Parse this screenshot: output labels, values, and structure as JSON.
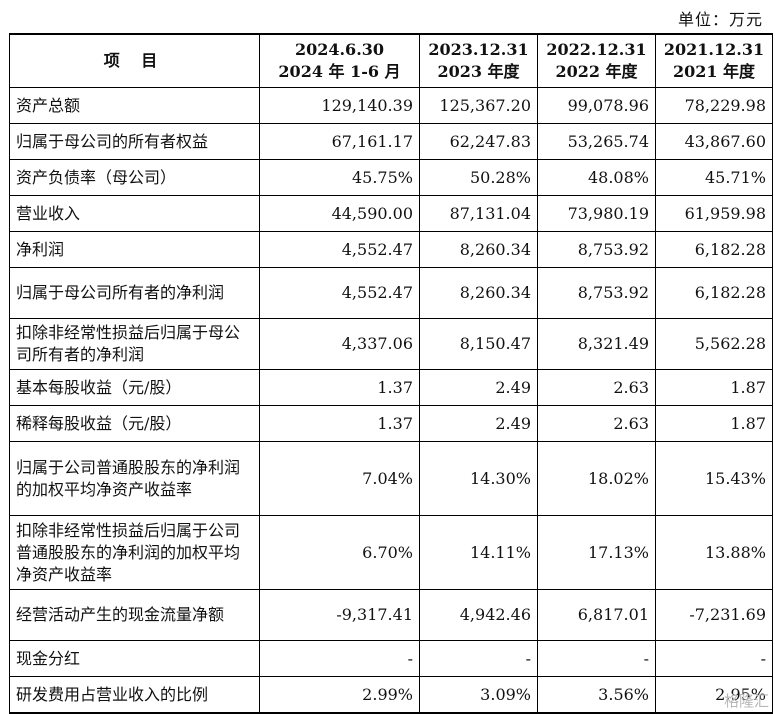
{
  "unit_label": "单位：万元",
  "headers": {
    "item": "项 目",
    "cols": [
      {
        "line1": "2024.6.30",
        "line2": "2024 年 1-6 月"
      },
      {
        "line1": "2023.12.31",
        "line2": "2023 年度"
      },
      {
        "line1": "2022.12.31",
        "line2": "2022 年度"
      },
      {
        "line1": "2021.12.31",
        "line2": "2021 年度"
      }
    ]
  },
  "rows": [
    {
      "label": "资产总额",
      "values": [
        "129,140.39",
        "125,367.20",
        "99,078.96",
        "78,229.98"
      ]
    },
    {
      "label": "归属于母公司的所有者权益",
      "values": [
        "67,161.17",
        "62,247.83",
        "53,265.74",
        "43,867.60"
      ]
    },
    {
      "label": "资产负债率（母公司）",
      "values": [
        "45.75%",
        "50.28%",
        "48.08%",
        "45.71%"
      ]
    },
    {
      "label": "营业收入",
      "values": [
        "44,590.00",
        "87,131.04",
        "73,980.19",
        "61,959.98"
      ]
    },
    {
      "label": "净利润",
      "values": [
        "4,552.47",
        "8,260.34",
        "8,753.92",
        "6,182.28"
      ]
    },
    {
      "label": "归属于母公司所有者的净利润",
      "values": [
        "4,552.47",
        "8,260.34",
        "8,753.92",
        "6,182.28"
      ]
    },
    {
      "label": "扣除非经常性损益后归属于母公司所有者的净利润",
      "values": [
        "4,337.06",
        "8,150.47",
        "8,321.49",
        "5,562.28"
      ]
    },
    {
      "label": "基本每股收益（元/股）",
      "values": [
        "1.37",
        "2.49",
        "2.63",
        "1.87"
      ]
    },
    {
      "label": "稀释每股收益（元/股）",
      "values": [
        "1.37",
        "2.49",
        "2.63",
        "1.87"
      ]
    },
    {
      "label": "归属于公司普通股股东的净利润的加权平均净资产收益率",
      "values": [
        "7.04%",
        "14.30%",
        "18.02%",
        "15.43%"
      ]
    },
    {
      "label": "扣除非经常性损益后归属于公司普通股股东的净利润的加权平均净资产收益率",
      "values": [
        "6.70%",
        "14.11%",
        "17.13%",
        "13.88%"
      ]
    },
    {
      "label": "经营活动产生的现金流量净额",
      "values": [
        "-9,317.41",
        "4,942.46",
        "6,817.01",
        "-7,231.69"
      ]
    },
    {
      "label": "现金分红",
      "values": [
        "-",
        "-",
        "-",
        "-"
      ]
    },
    {
      "label": "研发费用占营业收入的比例",
      "values": [
        "2.99%",
        "3.09%",
        "3.56%",
        "2.95%"
      ]
    }
  ],
  "watermark": "格隆汇"
}
